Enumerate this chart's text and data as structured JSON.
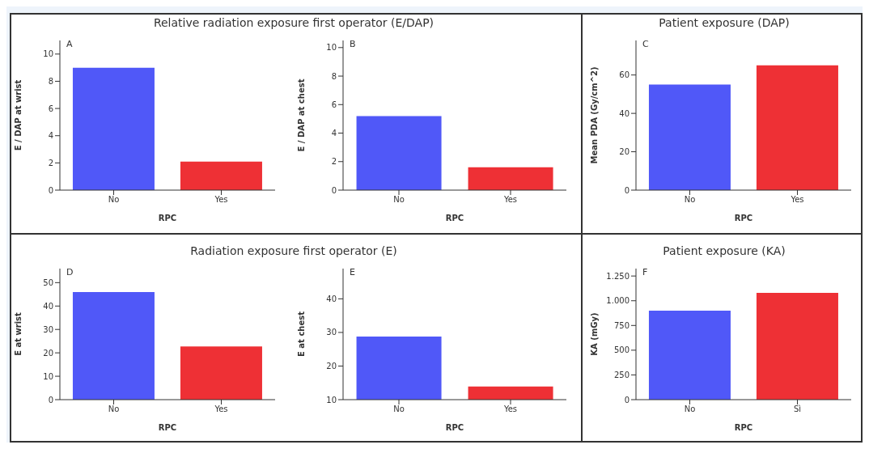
{
  "chart_data": [
    {
      "type": "bar",
      "title": "Relative radiation exposure first operator (E/DAP)",
      "annotations": [
        "A"
      ],
      "xlabel": "RPC",
      "ylabel": "E / DAP at wrist",
      "categories": [
        "No",
        "Yes"
      ],
      "values": [
        9.0,
        2.1
      ],
      "colors": [
        "#5058f8",
        "#ee3035"
      ],
      "ylim": [
        0,
        11
      ],
      "yticks": [
        0,
        2,
        4,
        6,
        8,
        10
      ],
      "grid": false
    },
    {
      "type": "bar",
      "annotations": [
        "B"
      ],
      "xlabel": "RPC",
      "ylabel": "E / DAP at chest",
      "categories": [
        "No",
        "Yes"
      ],
      "values": [
        5.2,
        1.6
      ],
      "colors": [
        "#5058f8",
        "#ee3035"
      ],
      "ylim": [
        0,
        10.5
      ],
      "yticks": [
        0,
        2,
        4,
        6,
        8,
        10
      ],
      "grid": false
    },
    {
      "type": "bar",
      "title": "Patient exposure (DAP)",
      "annotations": [
        "C"
      ],
      "xlabel": "RPC",
      "ylabel": "Mean PDA (Gy/cm^2)",
      "categories": [
        "No",
        "Yes"
      ],
      "values": [
        55,
        65
      ],
      "colors": [
        "#5058f8",
        "#ee3035"
      ],
      "ylim": [
        0,
        78
      ],
      "yticks": [
        0,
        20,
        40,
        60
      ],
      "grid": false
    },
    {
      "type": "bar",
      "title": "Radiation exposure first operator (E)",
      "annotations": [
        "D"
      ],
      "xlabel": "RPC",
      "ylabel": "E at wrist",
      "categories": [
        "No",
        "Yes"
      ],
      "values": [
        46,
        22.7
      ],
      "colors": [
        "#5058f8",
        "#ee3035"
      ],
      "ylim": [
        0,
        56
      ],
      "yticks": [
        0,
        10,
        20,
        30,
        40,
        50
      ],
      "grid": false
    },
    {
      "type": "bar",
      "annotations": [
        "E"
      ],
      "xlabel": "RPC",
      "ylabel": "E at chest",
      "categories": [
        "No",
        "Yes"
      ],
      "values": [
        28.8,
        13.9
      ],
      "colors": [
        "#5058f8",
        "#ee3035"
      ],
      "ylim": [
        10,
        49
      ],
      "yticks": [
        10,
        20,
        30,
        40
      ],
      "grid": false
    },
    {
      "type": "bar",
      "title": "Patient exposure (KA)",
      "annotations": [
        "F"
      ],
      "xlabel": "RPC",
      "ylabel": "KA (mGy)",
      "categories": [
        "No",
        "Sì"
      ],
      "values": [
        900,
        1080
      ],
      "colors": [
        "#5058f8",
        "#ee3035"
      ],
      "ylim": [
        0,
        1325
      ],
      "yticks": [
        0,
        250,
        500,
        750,
        {
          "value": 1000,
          "label": "1.000"
        },
        {
          "value": 1250,
          "label": "1.250"
        }
      ],
      "grid": false
    }
  ]
}
